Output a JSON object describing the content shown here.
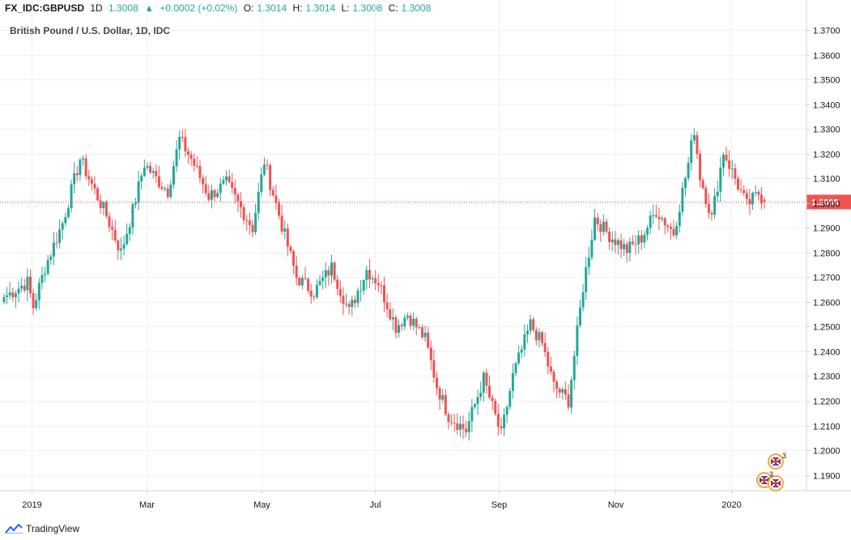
{
  "header": {
    "symbol": "FX_IDC:GBPUSD",
    "interval": "1D",
    "last": "1.3008",
    "change": "+0.0002 (+0.02%)",
    "o_label": "O:",
    "o": "1.3014",
    "h_label": "H:",
    "h": "1.3014",
    "l_label": "L:",
    "l": "1.3008",
    "c_label": "C:",
    "c": "1.3008"
  },
  "footer": {
    "brand": "TradingView"
  },
  "colors": {
    "up": "#26a69a",
    "down": "#ef5350",
    "grid": "#eef0f3",
    "price_line": "#ef5350"
  },
  "chart_data": {
    "type": "candlestick",
    "title": "British Pound / U.S. Dollar, 1D, IDC",
    "ylim": [
      1.18,
      1.37
    ],
    "y_ticks": [
      "1.1900",
      "1.2000",
      "1.2100",
      "1.2200",
      "1.2300",
      "1.2400",
      "1.2500",
      "1.2600",
      "1.2700",
      "1.2800",
      "1.2900",
      "1.3000",
      "1.3100",
      "1.3200",
      "1.3300",
      "1.3400",
      "1.3500",
      "1.3600",
      "1.3700"
    ],
    "x_ticks": [
      "2019",
      "Mar",
      "May",
      "Jul",
      "Sep",
      "Nov",
      "2020"
    ],
    "last_price": "1.3008",
    "anchors": [
      {
        "i": 0,
        "v": 1.262
      },
      {
        "i": 8,
        "v": 1.268
      },
      {
        "i": 10,
        "v": 1.258
      },
      {
        "i": 14,
        "v": 1.274
      },
      {
        "i": 20,
        "v": 1.292
      },
      {
        "i": 26,
        "v": 1.318
      },
      {
        "i": 31,
        "v": 1.305
      },
      {
        "i": 35,
        "v": 1.295
      },
      {
        "i": 40,
        "v": 1.28
      },
      {
        "i": 44,
        "v": 1.297
      },
      {
        "i": 48,
        "v": 1.316
      },
      {
        "i": 52,
        "v": 1.31
      },
      {
        "i": 56,
        "v": 1.305
      },
      {
        "i": 60,
        "v": 1.326
      },
      {
        "i": 64,
        "v": 1.318
      },
      {
        "i": 70,
        "v": 1.303
      },
      {
        "i": 76,
        "v": 1.308
      },
      {
        "i": 80,
        "v": 1.3
      },
      {
        "i": 85,
        "v": 1.29
      },
      {
        "i": 89,
        "v": 1.317
      },
      {
        "i": 95,
        "v": 1.291
      },
      {
        "i": 100,
        "v": 1.27
      },
      {
        "i": 106,
        "v": 1.264
      },
      {
        "i": 112,
        "v": 1.274
      },
      {
        "i": 118,
        "v": 1.256
      },
      {
        "i": 124,
        "v": 1.273
      },
      {
        "i": 128,
        "v": 1.268
      },
      {
        "i": 134,
        "v": 1.25
      },
      {
        "i": 138,
        "v": 1.255
      },
      {
        "i": 144,
        "v": 1.245
      },
      {
        "i": 148,
        "v": 1.226
      },
      {
        "i": 152,
        "v": 1.214
      },
      {
        "i": 158,
        "v": 1.208
      },
      {
        "i": 164,
        "v": 1.229
      },
      {
        "i": 170,
        "v": 1.206
      },
      {
        "i": 174,
        "v": 1.23
      },
      {
        "i": 180,
        "v": 1.251
      },
      {
        "i": 184,
        "v": 1.243
      },
      {
        "i": 188,
        "v": 1.226
      },
      {
        "i": 193,
        "v": 1.22
      },
      {
        "i": 198,
        "v": 1.266
      },
      {
        "i": 202,
        "v": 1.294
      },
      {
        "i": 207,
        "v": 1.287
      },
      {
        "i": 213,
        "v": 1.281
      },
      {
        "i": 218,
        "v": 1.286
      },
      {
        "i": 223,
        "v": 1.297
      },
      {
        "i": 229,
        "v": 1.288
      },
      {
        "i": 234,
        "v": 1.316
      },
      {
        "i": 236,
        "v": 1.33
      },
      {
        "i": 238,
        "v": 1.311
      },
      {
        "i": 242,
        "v": 1.294
      },
      {
        "i": 246,
        "v": 1.321
      },
      {
        "i": 250,
        "v": 1.31
      },
      {
        "i": 254,
        "v": 1.299
      },
      {
        "i": 258,
        "v": 1.304
      },
      {
        "i": 260,
        "v": 1.3008
      }
    ]
  }
}
